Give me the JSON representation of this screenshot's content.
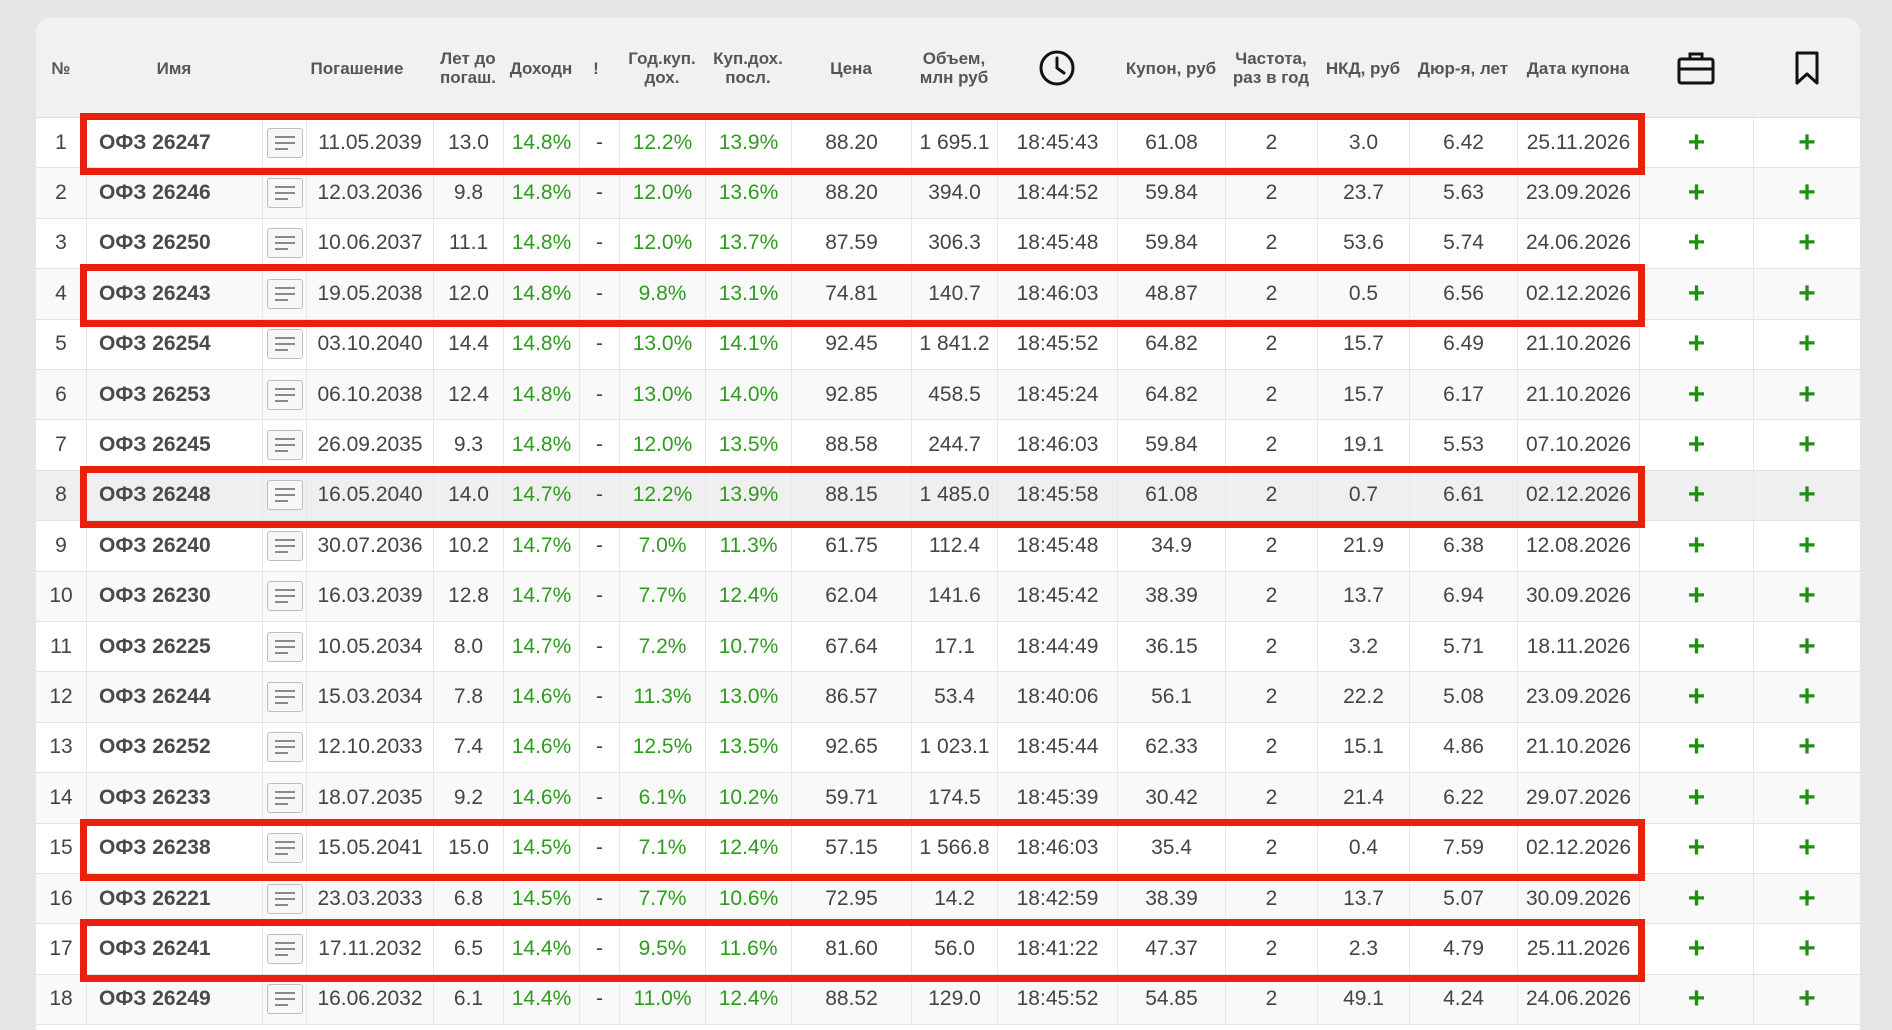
{
  "headers": {
    "num": "№",
    "name": "Имя",
    "maturity": "Погашение",
    "years": "Лет до\nпогаш.",
    "yield": "Доходн",
    "excl": "!",
    "annual_coupon_yield": "Год.куп.\nдох.",
    "last_coupon_yield": "Куп.дох.\nпосл.",
    "price": "Цена",
    "volume": "Объем,\nмлн руб",
    "time_icon": "clock-icon",
    "coupon": "Купон, руб",
    "frequency": "Частота,\nраз в год",
    "nkd": "НКД, руб",
    "duration": "Дюр-я, лет",
    "coupon_date": "Дата купона",
    "portfolio_icon": "briefcase-icon",
    "bookmark_icon": "bookmark-icon"
  },
  "colors": {
    "green_text": "#2e9b1e",
    "plus": "#1f8f12",
    "highlight": "#e8200c"
  },
  "rows": [
    {
      "num": "1",
      "name": "ОФЗ 26247",
      "maturity": "11.05.2039",
      "years": "13.0",
      "yield": "14.8%",
      "excl": "-",
      "annual": "12.2%",
      "last": "13.9%",
      "price": "88.20",
      "volume": "1 695.1",
      "time": "18:45:43",
      "coupon": "61.08",
      "freq": "2",
      "nkd": "3.0",
      "dur": "6.42",
      "date": "25.11.2026",
      "highlighted": true
    },
    {
      "num": "2",
      "name": "ОФЗ 26246",
      "maturity": "12.03.2036",
      "years": "9.8",
      "yield": "14.8%",
      "excl": "-",
      "annual": "12.0%",
      "last": "13.6%",
      "price": "88.20",
      "volume": "394.0",
      "time": "18:44:52",
      "coupon": "59.84",
      "freq": "2",
      "nkd": "23.7",
      "dur": "5.63",
      "date": "23.09.2026",
      "highlighted": false
    },
    {
      "num": "3",
      "name": "ОФЗ 26250",
      "maturity": "10.06.2037",
      "years": "11.1",
      "yield": "14.8%",
      "excl": "-",
      "annual": "12.0%",
      "last": "13.7%",
      "price": "87.59",
      "volume": "306.3",
      "time": "18:45:48",
      "coupon": "59.84",
      "freq": "2",
      "nkd": "53.6",
      "dur": "5.74",
      "date": "24.06.2026",
      "highlighted": false
    },
    {
      "num": "4",
      "name": "ОФЗ 26243",
      "maturity": "19.05.2038",
      "years": "12.0",
      "yield": "14.8%",
      "excl": "-",
      "annual": "9.8%",
      "last": "13.1%",
      "price": "74.81",
      "volume": "140.7",
      "time": "18:46:03",
      "coupon": "48.87",
      "freq": "2",
      "nkd": "0.5",
      "dur": "6.56",
      "date": "02.12.2026",
      "highlighted": true
    },
    {
      "num": "5",
      "name": "ОФЗ 26254",
      "maturity": "03.10.2040",
      "years": "14.4",
      "yield": "14.8%",
      "excl": "-",
      "annual": "13.0%",
      "last": "14.1%",
      "price": "92.45",
      "volume": "1 841.2",
      "time": "18:45:52",
      "coupon": "64.82",
      "freq": "2",
      "nkd": "15.7",
      "dur": "6.49",
      "date": "21.10.2026",
      "highlighted": false
    },
    {
      "num": "6",
      "name": "ОФЗ 26253",
      "maturity": "06.10.2038",
      "years": "12.4",
      "yield": "14.8%",
      "excl": "-",
      "annual": "13.0%",
      "last": "14.0%",
      "price": "92.85",
      "volume": "458.5",
      "time": "18:45:24",
      "coupon": "64.82",
      "freq": "2",
      "nkd": "15.7",
      "dur": "6.17",
      "date": "21.10.2026",
      "highlighted": false
    },
    {
      "num": "7",
      "name": "ОФЗ 26245",
      "maturity": "26.09.2035",
      "years": "9.3",
      "yield": "14.8%",
      "excl": "-",
      "annual": "12.0%",
      "last": "13.5%",
      "price": "88.58",
      "volume": "244.7",
      "time": "18:46:03",
      "coupon": "59.84",
      "freq": "2",
      "nkd": "19.1",
      "dur": "5.53",
      "date": "07.10.2026",
      "highlighted": false
    },
    {
      "num": "8",
      "name": "ОФЗ 26248",
      "maturity": "16.05.2040",
      "years": "14.0",
      "yield": "14.7%",
      "excl": "-",
      "annual": "12.2%",
      "last": "13.9%",
      "price": "88.15",
      "volume": "1 485.0",
      "time": "18:45:58",
      "coupon": "61.08",
      "freq": "2",
      "nkd": "0.7",
      "dur": "6.61",
      "date": "02.12.2026",
      "highlighted": true
    },
    {
      "num": "9",
      "name": "ОФЗ 26240",
      "maturity": "30.07.2036",
      "years": "10.2",
      "yield": "14.7%",
      "excl": "-",
      "annual": "7.0%",
      "last": "11.3%",
      "price": "61.75",
      "volume": "112.4",
      "time": "18:45:48",
      "coupon": "34.9",
      "freq": "2",
      "nkd": "21.9",
      "dur": "6.38",
      "date": "12.08.2026",
      "highlighted": false
    },
    {
      "num": "10",
      "name": "ОФЗ 26230",
      "maturity": "16.03.2039",
      "years": "12.8",
      "yield": "14.7%",
      "excl": "-",
      "annual": "7.7%",
      "last": "12.4%",
      "price": "62.04",
      "volume": "141.6",
      "time": "18:45:42",
      "coupon": "38.39",
      "freq": "2",
      "nkd": "13.7",
      "dur": "6.94",
      "date": "30.09.2026",
      "highlighted": false
    },
    {
      "num": "11",
      "name": "ОФЗ 26225",
      "maturity": "10.05.2034",
      "years": "8.0",
      "yield": "14.7%",
      "excl": "-",
      "annual": "7.2%",
      "last": "10.7%",
      "price": "67.64",
      "volume": "17.1",
      "time": "18:44:49",
      "coupon": "36.15",
      "freq": "2",
      "nkd": "3.2",
      "dur": "5.71",
      "date": "18.11.2026",
      "highlighted": false
    },
    {
      "num": "12",
      "name": "ОФЗ 26244",
      "maturity": "15.03.2034",
      "years": "7.8",
      "yield": "14.6%",
      "excl": "-",
      "annual": "11.3%",
      "last": "13.0%",
      "price": "86.57",
      "volume": "53.4",
      "time": "18:40:06",
      "coupon": "56.1",
      "freq": "2",
      "nkd": "22.2",
      "dur": "5.08",
      "date": "23.09.2026",
      "highlighted": false
    },
    {
      "num": "13",
      "name": "ОФЗ 26252",
      "maturity": "12.10.2033",
      "years": "7.4",
      "yield": "14.6%",
      "excl": "-",
      "annual": "12.5%",
      "last": "13.5%",
      "price": "92.65",
      "volume": "1 023.1",
      "time": "18:45:44",
      "coupon": "62.33",
      "freq": "2",
      "nkd": "15.1",
      "dur": "4.86",
      "date": "21.10.2026",
      "highlighted": false
    },
    {
      "num": "14",
      "name": "ОФЗ 26233",
      "maturity": "18.07.2035",
      "years": "9.2",
      "yield": "14.6%",
      "excl": "-",
      "annual": "6.1%",
      "last": "10.2%",
      "price": "59.71",
      "volume": "174.5",
      "time": "18:45:39",
      "coupon": "30.42",
      "freq": "2",
      "nkd": "21.4",
      "dur": "6.22",
      "date": "29.07.2026",
      "highlighted": false
    },
    {
      "num": "15",
      "name": "ОФЗ 26238",
      "maturity": "15.05.2041",
      "years": "15.0",
      "yield": "14.5%",
      "excl": "-",
      "annual": "7.1%",
      "last": "12.4%",
      "price": "57.15",
      "volume": "1 566.8",
      "time": "18:46:03",
      "coupon": "35.4",
      "freq": "2",
      "nkd": "0.4",
      "dur": "7.59",
      "date": "02.12.2026",
      "highlighted": true
    },
    {
      "num": "16",
      "name": "ОФЗ 26221",
      "maturity": "23.03.2033",
      "years": "6.8",
      "yield": "14.5%",
      "excl": "-",
      "annual": "7.7%",
      "last": "10.6%",
      "price": "72.95",
      "volume": "14.2",
      "time": "18:42:59",
      "coupon": "38.39",
      "freq": "2",
      "nkd": "13.7",
      "dur": "5.07",
      "date": "30.09.2026",
      "highlighted": false
    },
    {
      "num": "17",
      "name": "ОФЗ 26241",
      "maturity": "17.11.2032",
      "years": "6.5",
      "yield": "14.4%",
      "excl": "-",
      "annual": "9.5%",
      "last": "11.6%",
      "price": "81.60",
      "volume": "56.0",
      "time": "18:41:22",
      "coupon": "47.37",
      "freq": "2",
      "nkd": "2.3",
      "dur": "4.79",
      "date": "25.11.2026",
      "highlighted": true
    },
    {
      "num": "18",
      "name": "ОФЗ 26249",
      "maturity": "16.06.2032",
      "years": "6.1",
      "yield": "14.4%",
      "excl": "-",
      "annual": "11.0%",
      "last": "12.4%",
      "price": "88.52",
      "volume": "129.0",
      "time": "18:45:52",
      "coupon": "54.85",
      "freq": "2",
      "nkd": "49.1",
      "dur": "4.24",
      "date": "24.06.2026",
      "highlighted": false
    }
  ],
  "row_actions": {
    "doc_icon": "document-lines-icon",
    "add_icon": "plus-icon",
    "add_glyph": "+"
  }
}
